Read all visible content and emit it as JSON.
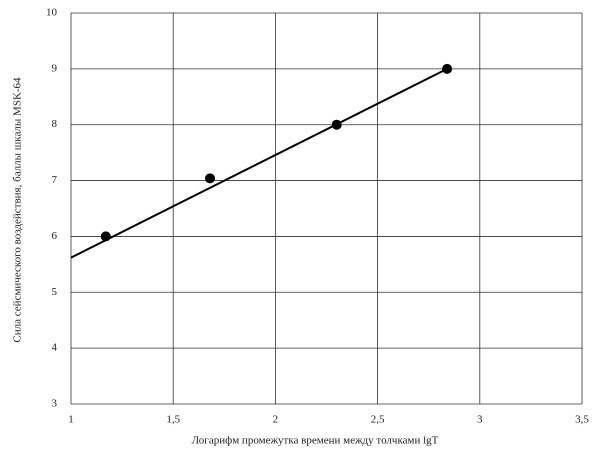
{
  "chart_data": {
    "type": "scatter",
    "x_label": "Логарифм промежутка времени между толчками lgT",
    "y_label": "Сила сейсмического воздействия, баллы шкалы MSK-64",
    "points": {
      "x": [
        1.17,
        1.68,
        2.3,
        2.84
      ],
      "y": [
        6.0,
        7.04,
        8.0,
        9.0
      ],
      "color": "#000000"
    },
    "trend_line": {
      "x": [
        1,
        2.84
      ],
      "y": [
        5.62,
        9.0
      ],
      "color": "#000000"
    },
    "xlim": [
      1,
      3.5
    ],
    "xticks": [
      1,
      {
        "value": 1.5,
        "label": "1,5"
      },
      2,
      {
        "value": 2.5,
        "label": "2,5"
      },
      3,
      {
        "value": 3.5,
        "label": "3,5"
      }
    ],
    "ylim": [
      3,
      10
    ],
    "yticks": [
      3,
      4,
      5,
      6,
      7,
      8,
      9,
      10
    ],
    "grid": true
  }
}
